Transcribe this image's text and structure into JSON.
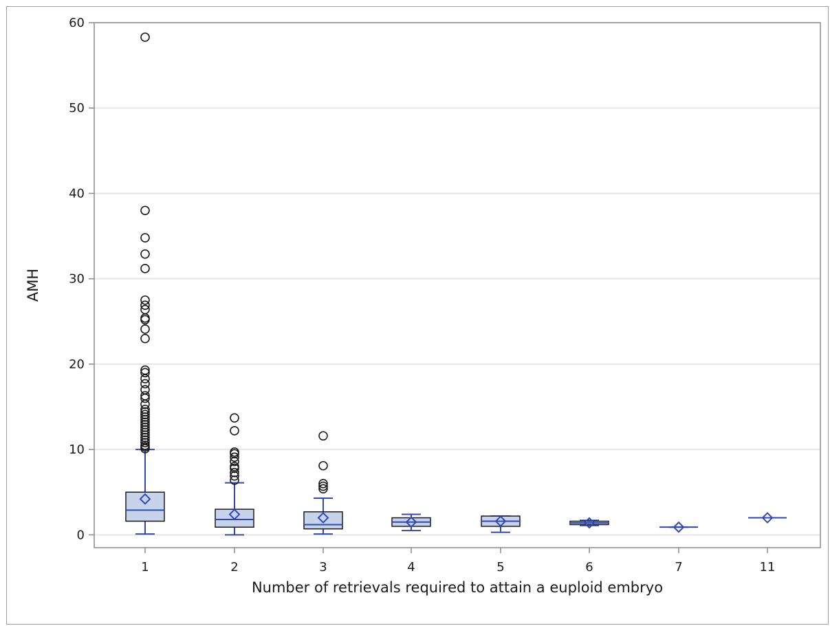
{
  "chart_data": {
    "type": "box",
    "title": "",
    "xlabel": "Number of retrievals required to attain a euploid embryo",
    "ylabel": "AMH",
    "ylim": [
      0,
      60
    ],
    "yticks": [
      0,
      10,
      20,
      30,
      40,
      50,
      60
    ],
    "grid": "horizontal",
    "categories": [
      "1",
      "2",
      "3",
      "4",
      "5",
      "6",
      "7",
      "11"
    ],
    "boxes": [
      {
        "category": "1",
        "whisker_low": 0.1,
        "q1": 1.6,
        "median": 2.9,
        "q3": 5.0,
        "whisker_high": 10.0,
        "mean": 4.2,
        "outliers": [
          10.1,
          10.3,
          10.5,
          10.8,
          11.1,
          11.4,
          11.7,
          12.0,
          12.3,
          12.6,
          12.9,
          13.2,
          13.5,
          13.8,
          14.1,
          14.4,
          14.7,
          15.3,
          16.0,
          16.3,
          17.0,
          17.7,
          18.3,
          19.0,
          19.3,
          23.0,
          24.1,
          25.2,
          25.4,
          26.4,
          26.9,
          27.5,
          31.2,
          32.9,
          34.8,
          38.0,
          58.3
        ]
      },
      {
        "category": "2",
        "whisker_low": 0.0,
        "q1": 0.9,
        "median": 1.8,
        "q3": 3.0,
        "whisker_high": 6.1,
        "mean": 2.4,
        "outliers": [
          6.4,
          6.9,
          7.3,
          7.8,
          8.0,
          8.6,
          9.1,
          9.5,
          9.7,
          12.2,
          13.7
        ]
      },
      {
        "category": "3",
        "whisker_low": 0.1,
        "q1": 0.7,
        "median": 1.2,
        "q3": 2.7,
        "whisker_high": 4.3,
        "mean": 2.0,
        "outliers": [
          5.4,
          5.7,
          6.0,
          8.1,
          11.6
        ]
      },
      {
        "category": "4",
        "whisker_low": 0.5,
        "q1": 1.0,
        "median": 1.5,
        "q3": 2.0,
        "whisker_high": 2.4,
        "mean": 1.5,
        "outliers": []
      },
      {
        "category": "5",
        "whisker_low": 0.3,
        "q1": 1.0,
        "median": 1.6,
        "q3": 2.2,
        "whisker_high": 2.2,
        "mean": 1.6,
        "outliers": []
      },
      {
        "category": "6",
        "whisker_low": 1.1,
        "q1": 1.2,
        "median": 1.4,
        "q3": 1.6,
        "whisker_high": 1.7,
        "mean": 1.4,
        "outliers": []
      },
      {
        "category": "7",
        "whisker_low": 0.9,
        "q1": 0.9,
        "median": 0.9,
        "q3": 0.9,
        "whisker_high": 0.9,
        "mean": 0.9,
        "outliers": []
      },
      {
        "category": "11",
        "whisker_low": 2.0,
        "q1": 2.0,
        "median": 2.0,
        "q3": 2.0,
        "whisker_high": 2.0,
        "mean": 2.0,
        "outliers": []
      }
    ],
    "colors": {
      "box_fill": "#c7d3e8",
      "box_border": "#1a1a1a",
      "whisker": "#3047b8",
      "median": "#3047b8",
      "mean_marker": "#3047b8",
      "outlier": "#1a1a1a",
      "grid": "#e6e6e6",
      "axis": "#8a8a8a"
    }
  }
}
